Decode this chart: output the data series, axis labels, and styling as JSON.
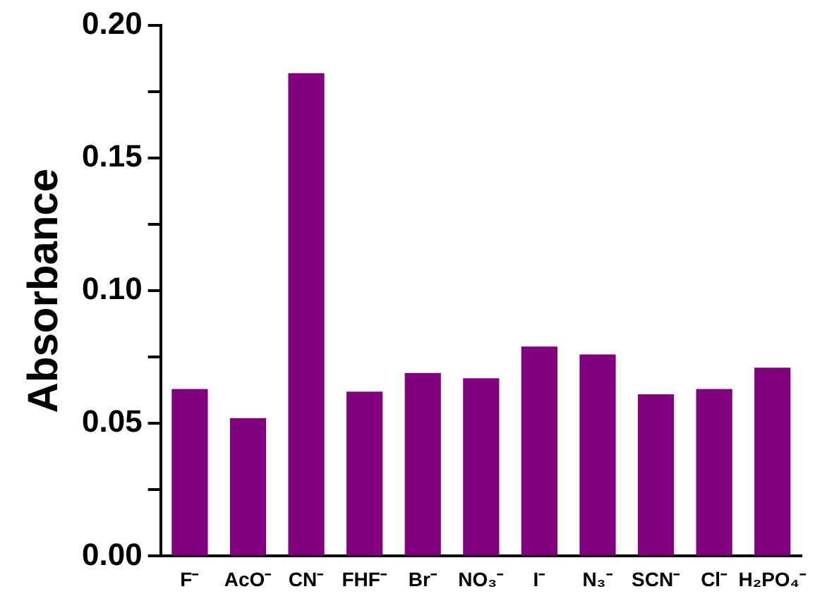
{
  "chart_data": {
    "type": "bar",
    "ylabel": "Absorbance",
    "categories": [
      "F⁻",
      "AcO⁻",
      "CN⁻",
      "FHF⁻",
      "Br⁻",
      "NO₃⁻",
      "I⁻",
      "N₃⁻",
      "SCN⁻",
      "Cl⁻",
      "H₂PO₄⁻"
    ],
    "values": [
      0.063,
      0.052,
      0.182,
      0.062,
      0.069,
      0.067,
      0.079,
      0.076,
      0.061,
      0.063,
      0.071
    ],
    "color": "#800080",
    "ylim": [
      0,
      0.2
    ],
    "yticks": [
      {
        "value": 0,
        "label": "0.00"
      },
      {
        "value": 0.025,
        "label": null
      },
      {
        "value": 0.05,
        "label": "0.05"
      },
      {
        "value": 0.075,
        "label": null
      },
      {
        "value": 0.1,
        "label": "0.10"
      },
      {
        "value": 0.125,
        "label": null
      },
      {
        "value": 0.15,
        "label": "0.15"
      },
      {
        "value": 0.175,
        "label": null
      },
      {
        "value": 0.2,
        "label": "0.20"
      }
    ],
    "grid": false,
    "legend": false
  }
}
